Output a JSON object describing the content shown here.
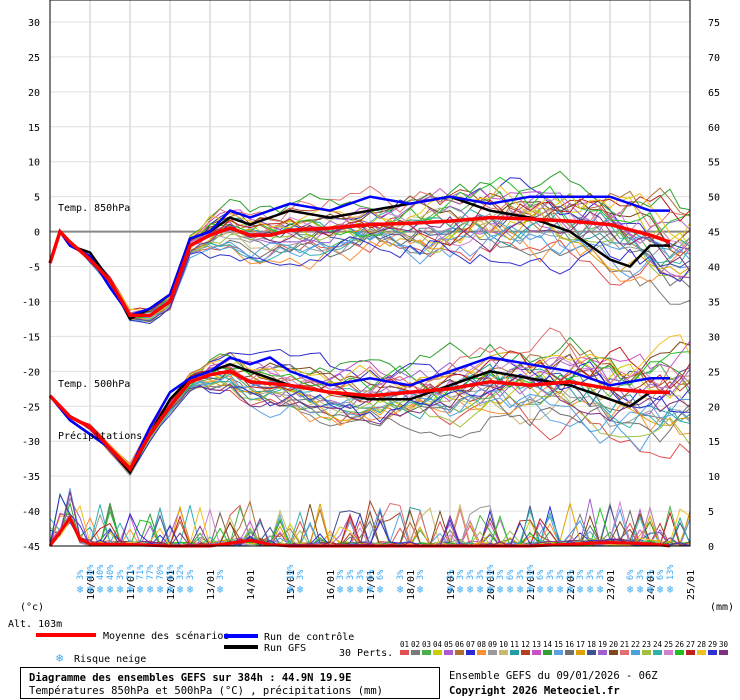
{
  "chart_data": {
    "type": "line",
    "left_axis_unit": "(°c)",
    "right_axis_unit": "(mm)",
    "left_ticks": [
      30,
      25,
      20,
      15,
      10,
      5,
      0,
      -5,
      -10,
      -15,
      -20,
      -25,
      -30,
      -35,
      -40,
      -45
    ],
    "right_ticks": [
      75,
      70,
      65,
      60,
      55,
      50,
      45,
      40,
      35,
      30,
      25,
      20,
      15,
      10,
      5,
      0
    ],
    "ylim_temp": [
      -45,
      30
    ],
    "ylim_precip": [
      0,
      75
    ],
    "xlim_days": [
      0,
      16
    ],
    "date_ticks": [
      "10/01",
      "11/01",
      "12/01",
      "13/01",
      "14/01",
      "15/01",
      "16/01",
      "17/01",
      "18/01",
      "19/01",
      "20/01",
      "21/01",
      "22/01",
      "23/01",
      "24/01",
      "25/01"
    ],
    "labels": {
      "t850": "Temp. 850hPa",
      "t500": "Temp. 500hPa",
      "precip": "Précipitations",
      "altitude": "Alt. 103m"
    },
    "mean_850": [
      [
        0,
        -4.5
      ],
      [
        0.25,
        0
      ],
      [
        0.5,
        -1.5
      ],
      [
        1,
        -4
      ],
      [
        1.5,
        -7
      ],
      [
        2,
        -12
      ],
      [
        2.5,
        -12
      ],
      [
        3,
        -10
      ],
      [
        3.5,
        -2
      ],
      [
        4,
        -0.5
      ],
      [
        4.5,
        0.5
      ],
      [
        5,
        -0.5
      ],
      [
        5.5,
        -0.5
      ],
      [
        6,
        0.2
      ],
      [
        7,
        0.5
      ],
      [
        8,
        1
      ],
      [
        9,
        1.2
      ],
      [
        10,
        1.5
      ],
      [
        11,
        2
      ],
      [
        12,
        1.8
      ],
      [
        13,
        1.5
      ],
      [
        14,
        1
      ],
      [
        15,
        -0.5
      ],
      [
        15.5,
        -1.5
      ]
    ],
    "control_850": [
      [
        0,
        -4.5
      ],
      [
        0.25,
        0
      ],
      [
        0.5,
        -2
      ],
      [
        1,
        -3.5
      ],
      [
        1.5,
        -8
      ],
      [
        2,
        -12
      ],
      [
        2.5,
        -11
      ],
      [
        3,
        -9
      ],
      [
        3.5,
        -1
      ],
      [
        4,
        0
      ],
      [
        4.5,
        3
      ],
      [
        5,
        2
      ],
      [
        5.5,
        3
      ],
      [
        6,
        4
      ],
      [
        7,
        3
      ],
      [
        8,
        5
      ],
      [
        9,
        4
      ],
      [
        10,
        5
      ],
      [
        11,
        4
      ],
      [
        12,
        5
      ],
      [
        13,
        5
      ],
      [
        14,
        5
      ],
      [
        15,
        3
      ],
      [
        15.5,
        3
      ]
    ],
    "gfs_850": [
      [
        0,
        -4.5
      ],
      [
        0.25,
        0
      ],
      [
        0.5,
        -2
      ],
      [
        1,
        -3
      ],
      [
        1.5,
        -7
      ],
      [
        2,
        -12.5
      ],
      [
        2.5,
        -11
      ],
      [
        3,
        -9
      ],
      [
        3.5,
        -1
      ],
      [
        4,
        0
      ],
      [
        4.5,
        2
      ],
      [
        5,
        1
      ],
      [
        5.5,
        2
      ],
      [
        6,
        3
      ],
      [
        7,
        2
      ],
      [
        8,
        3
      ],
      [
        9,
        4
      ],
      [
        10,
        5
      ],
      [
        11,
        3
      ],
      [
        12,
        2
      ],
      [
        13,
        0
      ],
      [
        14,
        -4
      ],
      [
        14.5,
        -5
      ],
      [
        15,
        -2
      ],
      [
        15.5,
        -2
      ]
    ],
    "mean_500": [
      [
        0,
        -23.5
      ],
      [
        0.5,
        -26.5
      ],
      [
        1,
        -28
      ],
      [
        1.5,
        -31
      ],
      [
        2,
        -34
      ],
      [
        2.5,
        -29
      ],
      [
        3,
        -25
      ],
      [
        3.5,
        -21.5
      ],
      [
        4,
        -20.5
      ],
      [
        4.5,
        -20
      ],
      [
        5,
        -21.5
      ],
      [
        6,
        -22
      ],
      [
        7,
        -23
      ],
      [
        8,
        -23.5
      ],
      [
        9,
        -23
      ],
      [
        10,
        -22.5
      ],
      [
        11,
        -21.5
      ],
      [
        12,
        -22
      ],
      [
        13,
        -21.5
      ],
      [
        14,
        -22.5
      ],
      [
        15,
        -23
      ],
      [
        15.5,
        -23
      ]
    ],
    "control_500": [
      [
        0,
        -23.5
      ],
      [
        0.5,
        -27
      ],
      [
        1,
        -29
      ],
      [
        1.5,
        -31
      ],
      [
        2,
        -34
      ],
      [
        2.5,
        -28
      ],
      [
        3,
        -23
      ],
      [
        3.5,
        -21
      ],
      [
        4,
        -20
      ],
      [
        4.5,
        -18
      ],
      [
        5,
        -19
      ],
      [
        5.5,
        -18
      ],
      [
        6,
        -20
      ],
      [
        7,
        -22
      ],
      [
        8,
        -21
      ],
      [
        9,
        -22
      ],
      [
        10,
        -20
      ],
      [
        11,
        -18
      ],
      [
        12,
        -19
      ],
      [
        13,
        -20
      ],
      [
        14,
        -22
      ],
      [
        15,
        -21
      ],
      [
        15.5,
        -21
      ]
    ],
    "gfs_500": [
      [
        0,
        -23.5
      ],
      [
        0.5,
        -27
      ],
      [
        1,
        -29
      ],
      [
        1.5,
        -31
      ],
      [
        2,
        -34.5
      ],
      [
        2.5,
        -29
      ],
      [
        3,
        -24
      ],
      [
        3.5,
        -21
      ],
      [
        4,
        -20
      ],
      [
        4.5,
        -19
      ],
      [
        5,
        -20
      ],
      [
        5.5,
        -21
      ],
      [
        6,
        -22
      ],
      [
        7,
        -23
      ],
      [
        8,
        -24
      ],
      [
        9,
        -24
      ],
      [
        10,
        -22
      ],
      [
        11,
        -20
      ],
      [
        12,
        -21
      ],
      [
        13,
        -22
      ],
      [
        14,
        -24
      ],
      [
        14.5,
        -25
      ],
      [
        15,
        -23
      ],
      [
        15.5,
        -23
      ]
    ],
    "mean_precip": [
      [
        0,
        0
      ],
      [
        0.5,
        4
      ],
      [
        0.75,
        1
      ],
      [
        1,
        0.3
      ],
      [
        2,
        0.2
      ],
      [
        3,
        0
      ],
      [
        4,
        0
      ],
      [
        5,
        0.8
      ],
      [
        5.5,
        0.2
      ],
      [
        6,
        0
      ],
      [
        10,
        0
      ],
      [
        12,
        0
      ],
      [
        14,
        0.5
      ],
      [
        15,
        0.3
      ],
      [
        15.5,
        0
      ]
    ],
    "snow_risk": [
      {
        "d": 0.75,
        "pct": "3%"
      },
      {
        "d": 1,
        "pct": "40%"
      },
      {
        "d": 1.25,
        "pct": "40%"
      },
      {
        "d": 1.5,
        "pct": "40%"
      },
      {
        "d": 1.75,
        "pct": "3%"
      },
      {
        "d": 2,
        "pct": "71%"
      },
      {
        "d": 2.25,
        "pct": "71%"
      },
      {
        "d": 2.5,
        "pct": "77%"
      },
      {
        "d": 2.75,
        "pct": "70%"
      },
      {
        "d": 3,
        "pct": "65%"
      },
      {
        "d": 3.25,
        "pct": "32%"
      },
      {
        "d": 3.5,
        "pct": "3%"
      },
      {
        "d": 4.25,
        "pct": "3%"
      },
      {
        "d": 6,
        "pct": "10%"
      },
      {
        "d": 6.25,
        "pct": "3%"
      },
      {
        "d": 7.25,
        "pct": "3%"
      },
      {
        "d": 7.5,
        "pct": "3%"
      },
      {
        "d": 7.75,
        "pct": "3%"
      },
      {
        "d": 8,
        "pct": "6%"
      },
      {
        "d": 8.25,
        "pct": "6%"
      },
      {
        "d": 8.75,
        "pct": "3%"
      },
      {
        "d": 9.25,
        "pct": "3%"
      },
      {
        "d": 10,
        "pct": "3%"
      },
      {
        "d": 10.25,
        "pct": "3%"
      },
      {
        "d": 10.5,
        "pct": "3%"
      },
      {
        "d": 10.75,
        "pct": "3%"
      },
      {
        "d": 11,
        "pct": "10%"
      },
      {
        "d": 11.25,
        "pct": "3%"
      },
      {
        "d": 11.5,
        "pct": "6%"
      },
      {
        "d": 11.75,
        "pct": "3%"
      },
      {
        "d": 12,
        "pct": "10%"
      },
      {
        "d": 12.25,
        "pct": "6%"
      },
      {
        "d": 12.5,
        "pct": "3%"
      },
      {
        "d": 12.75,
        "pct": "3%"
      },
      {
        "d": 13,
        "pct": "3%"
      },
      {
        "d": 13.25,
        "pct": "3%"
      },
      {
        "d": 13.5,
        "pct": "3%"
      },
      {
        "d": 13.75,
        "pct": "3%"
      },
      {
        "d": 14.5,
        "pct": "6%"
      },
      {
        "d": 14.75,
        "pct": "3%"
      },
      {
        "d": 15,
        "pct": "3%"
      },
      {
        "d": 15.25,
        "pct": "6%"
      },
      {
        "d": 15.5,
        "pct": "13%"
      }
    ]
  },
  "legend": {
    "mean": "Moyenne des scénarios",
    "control": "Run de contrôle",
    "gfs": "Run GFS",
    "snow": "Risque neige",
    "perts": "30 Perts.",
    "pert_numbers": [
      "01",
      "02",
      "03",
      "04",
      "05",
      "06",
      "07",
      "08",
      "09",
      "10",
      "11",
      "12",
      "13",
      "14",
      "15",
      "16",
      "17",
      "18",
      "19",
      "20",
      "21",
      "22",
      "23",
      "24",
      "25",
      "26",
      "27",
      "28",
      "29",
      "30"
    ],
    "pert_colors": [
      "#e05050",
      "#7a7a7a",
      "#4ab04a",
      "#cccc00",
      "#b05ad0",
      "#b07030",
      "#2b2bd0",
      "#ff9030",
      "#9a9a9a",
      "#c8b870",
      "#20a0a0",
      "#b04020",
      "#c850c8",
      "#30a030",
      "#60a0e0",
      "#707070",
      "#e0a000",
      "#405090",
      "#a060d0",
      "#7a4a1a",
      "#e07070",
      "#4aa0e0",
      "#a0c040",
      "#30b0b0",
      "#d080d0",
      "#20c020",
      "#c02020",
      "#f0c020",
      "#3030d0",
      "#803080"
    ],
    "colors": {
      "mean": "#ff0000",
      "control": "#0000ff",
      "gfs": "#000000",
      "snow": "#3fa9f5"
    }
  },
  "footer": {
    "title": "Diagramme des ensembles GEFS sur 384h : 44.9N 19.9E",
    "subtitle": "Températures 850hPa et 500hPa (°C) , précipitations (mm)",
    "run": "Ensemble GEFS du 09/01/2026 - 06Z",
    "copyright": "Copyright 2026 Meteociel.fr"
  }
}
